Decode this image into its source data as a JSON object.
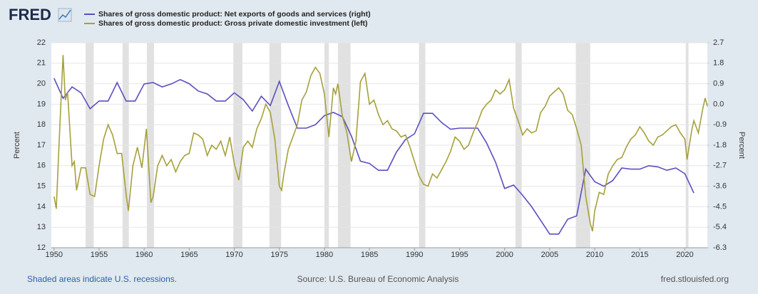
{
  "logo": "FRED",
  "footer": {
    "recessions": "Shaded areas indicate U.S. recessions.",
    "source": "Source: U.S. Bureau of Economic Analysis",
    "site": "fred.stlouisfed.org"
  },
  "chart_data": {
    "type": "line",
    "ylabel": "Percent",
    "y2label": "Percent",
    "xlim": [
      1949.7,
      2022.5
    ],
    "xticks": [
      1950,
      1955,
      1960,
      1965,
      1970,
      1975,
      1980,
      1985,
      1990,
      1995,
      2000,
      2005,
      2010,
      2015,
      2020
    ],
    "ylim": [
      12,
      22
    ],
    "yticks": [
      12,
      13,
      14,
      15,
      16,
      17,
      18,
      19,
      20,
      21,
      22
    ],
    "y2lim": [
      -6.3,
      2.7
    ],
    "y2ticks": [
      -6.3,
      -5.4,
      -4.5,
      -3.6,
      -2.7,
      -1.8,
      -0.9,
      {
        "value": 0,
        "label": "0.0"
      },
      0.9,
      1.8,
      2.7
    ],
    "grid": true,
    "recession_color": "#e1e1e1",
    "recessions": [
      {
        "start": 1953.5,
        "end": 1954.4
      },
      {
        "start": 1957.6,
        "end": 1958.3
      },
      {
        "start": 1960.3,
        "end": 1961.1
      },
      {
        "start": 1969.9,
        "end": 1970.9
      },
      {
        "start": 1973.9,
        "end": 1975.2
      },
      {
        "start": 1980.0,
        "end": 1980.5
      },
      {
        "start": 1981.5,
        "end": 1982.9
      },
      {
        "start": 1990.5,
        "end": 1991.2
      },
      {
        "start": 2001.2,
        "end": 2001.9
      },
      {
        "start": 2007.9,
        "end": 2009.5
      },
      {
        "start": 2020.1,
        "end": 2020.4
      }
    ],
    "series": [
      {
        "name": "Shares of gross domestic product: Net exports of goods and services (right)",
        "color": "#5b4fbf",
        "axis": "y2",
        "x": [
          1950,
          1951,
          1952,
          1953,
          1954,
          1955,
          1956,
          1957,
          1958,
          1959,
          1960,
          1961,
          1962,
          1963,
          1964,
          1965,
          1966,
          1967,
          1968,
          1969,
          1970,
          1971,
          1972,
          1973,
          1974,
          1975,
          1976,
          1977,
          1978,
          1979,
          1980,
          1981,
          1982,
          1983,
          1984,
          1985,
          1986,
          1987,
          1988,
          1989,
          1990,
          1991,
          1992,
          1993,
          1994,
          1995,
          1996,
          1997,
          1998,
          1999,
          2000,
          2001,
          2002,
          2003,
          2004,
          2005,
          2006,
          2007,
          2008,
          2009,
          2010,
          2011,
          2012,
          2013,
          2014,
          2015,
          2016,
          2017,
          2018,
          2019,
          2020,
          2021
        ],
        "values": [
          1.14,
          0.26,
          0.76,
          0.5,
          -0.2,
          0.14,
          0.14,
          0.95,
          0.14,
          0.14,
          0.89,
          0.95,
          0.76,
          0.89,
          1.08,
          0.9,
          0.58,
          0.45,
          0.14,
          0.14,
          0.5,
          0.2,
          -0.3,
          0.35,
          -0.06,
          1.0,
          -0.06,
          -1.05,
          -1.05,
          -0.9,
          -0.5,
          -0.36,
          -0.55,
          -1.4,
          -2.5,
          -2.6,
          -2.9,
          -2.9,
          -2.1,
          -1.55,
          -1.3,
          -0.4,
          -0.4,
          -0.8,
          -1.1,
          -1.05,
          -1.05,
          -1.05,
          -1.7,
          -2.55,
          -3.7,
          -3.55,
          -4.0,
          -4.5,
          -5.1,
          -5.7,
          -5.7,
          -5.05,
          -4.9,
          -2.85,
          -3.4,
          -3.6,
          -3.35,
          -2.8,
          -2.85,
          -2.85,
          -2.7,
          -2.75,
          -2.9,
          -2.8,
          -3.05,
          -3.9
        ]
      },
      {
        "name": "Shares of gross domestic product: Gross private domestic investment (left)",
        "color": "#a6a03c",
        "x": [
          1950,
          1950.25,
          1950.5,
          1951,
          1951.25,
          1951.5,
          1952,
          1952.25,
          1952.5,
          1953,
          1953.5,
          1954,
          1954.5,
          1955,
          1955.5,
          1956,
          1956.5,
          1957,
          1957.5,
          1958,
          1958.25,
          1958.75,
          1959.25,
          1959.75,
          1960.25,
          1960.75,
          1961,
          1961.5,
          1962,
          1962.5,
          1963,
          1963.5,
          1964,
          1964.5,
          1965,
          1965.5,
          1966,
          1966.5,
          1967,
          1967.5,
          1968,
          1968.5,
          1969,
          1969.5,
          1970,
          1970.5,
          1971,
          1971.5,
          1972,
          1972.5,
          1973,
          1973.5,
          1974,
          1974.5,
          1975,
          1975.25,
          1975.5,
          1976,
          1976.5,
          1977,
          1977.5,
          1978,
          1978.5,
          1979,
          1979.5,
          1980,
          1980.5,
          1981,
          1981.25,
          1981.5,
          1982,
          1982.5,
          1983,
          1983.5,
          1984,
          1984.5,
          1985,
          1985.5,
          1986,
          1986.5,
          1987,
          1987.5,
          1988,
          1988.5,
          1989,
          1989.5,
          1990,
          1990.5,
          1991,
          1991.5,
          1992,
          1992.5,
          1993,
          1993.5,
          1994,
          1994.5,
          1995,
          1995.5,
          1996,
          1996.5,
          1997,
          1997.5,
          1998,
          1998.5,
          1999,
          1999.5,
          2000,
          2000.5,
          2001,
          2001.5,
          2002,
          2002.5,
          2003,
          2003.5,
          2004,
          2004.5,
          2005,
          2005.5,
          2006,
          2006.5,
          2007,
          2007.5,
          2008,
          2008.5,
          2009,
          2009.5,
          2009.75,
          2010,
          2010.5,
          2011,
          2011.5,
          2012,
          2012.5,
          2013,
          2013.5,
          2014,
          2014.5,
          2015,
          2015.5,
          2016,
          2016.5,
          2017,
          2017.5,
          2018,
          2018.5,
          2019,
          2019.5,
          2020,
          2020.25,
          2020.75,
          2021,
          2021.5,
          2022,
          2022.25,
          2022.5
        ],
        "values": [
          14.5,
          13.9,
          16.5,
          21.4,
          19.2,
          19.6,
          16.0,
          16.2,
          14.8,
          15.9,
          15.9,
          14.6,
          14.5,
          16.0,
          17.3,
          18.0,
          17.5,
          16.6,
          16.6,
          14.6,
          13.8,
          16.0,
          16.9,
          15.9,
          17.8,
          14.2,
          14.5,
          16.0,
          16.5,
          16.0,
          16.3,
          15.7,
          16.2,
          16.5,
          16.6,
          17.6,
          17.5,
          17.3,
          16.5,
          17.0,
          16.8,
          17.2,
          16.5,
          17.4,
          16.1,
          15.3,
          16.9,
          17.2,
          16.9,
          17.8,
          18.3,
          19.0,
          18.6,
          17.3,
          15.0,
          14.8,
          15.6,
          16.8,
          17.4,
          18.0,
          19.2,
          19.6,
          20.4,
          20.8,
          20.5,
          19.5,
          17.4,
          19.8,
          19.5,
          20.0,
          18.4,
          17.6,
          16.2,
          17.2,
          20.1,
          20.5,
          19.0,
          19.2,
          18.5,
          18.0,
          18.2,
          17.8,
          17.7,
          17.4,
          17.5,
          16.9,
          16.2,
          15.5,
          15.1,
          15.0,
          15.6,
          15.4,
          15.8,
          16.2,
          16.7,
          17.4,
          17.2,
          16.8,
          17.0,
          17.6,
          18.1,
          18.7,
          19.0,
          19.2,
          19.7,
          19.5,
          19.7,
          20.2,
          18.8,
          18.2,
          17.5,
          17.8,
          17.6,
          17.7,
          18.6,
          18.9,
          19.4,
          19.6,
          19.8,
          19.5,
          18.7,
          18.5,
          17.8,
          17.0,
          14.5,
          13.2,
          12.8,
          13.8,
          14.7,
          14.6,
          15.6,
          16.0,
          16.3,
          16.4,
          16.9,
          17.3,
          17.5,
          17.9,
          17.6,
          17.2,
          17.0,
          17.4,
          17.5,
          17.7,
          17.9,
          18.0,
          17.6,
          17.3,
          16.3,
          17.7,
          18.2,
          17.6,
          18.8,
          19.3,
          18.9
        ]
      }
    ]
  }
}
